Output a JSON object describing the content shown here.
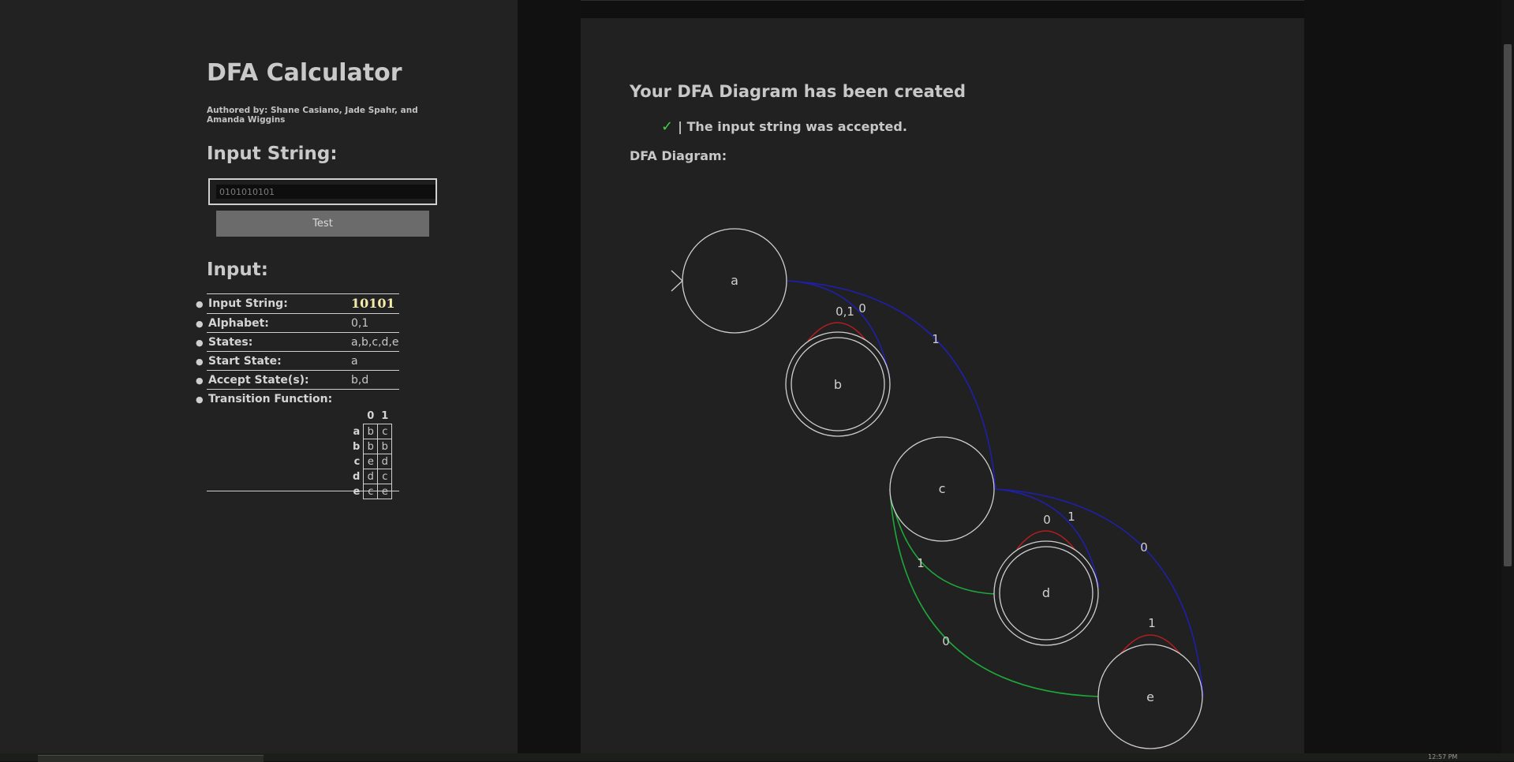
{
  "app": {
    "title": "DFA Calculator",
    "authors": "Authored by: Shane Casiano, Jade Spahr, and Amanda Wiggins"
  },
  "input_section": {
    "heading": "Input String:",
    "placeholder": "0101010101",
    "test_label": "Test"
  },
  "info_section": {
    "heading": "Input:",
    "rows": [
      {
        "label": "Input String:",
        "value": "10101"
      },
      {
        "label": "Alphabet:",
        "value": "0,1"
      },
      {
        "label": "States:",
        "value": "a,b,c,d,e"
      },
      {
        "label": "Start State:",
        "value": "a"
      },
      {
        "label": "Accept State(s):",
        "value": "b,d"
      },
      {
        "label": "Transition Function:",
        "value": ""
      }
    ],
    "transition_table": {
      "symbols": [
        "0",
        "1"
      ],
      "rows": [
        {
          "state": "a",
          "on": [
            "b",
            "c"
          ]
        },
        {
          "state": "b",
          "on": [
            "b",
            "b"
          ]
        },
        {
          "state": "c",
          "on": [
            "e",
            "d"
          ]
        },
        {
          "state": "d",
          "on": [
            "d",
            "c"
          ]
        },
        {
          "state": "e",
          "on": [
            "c",
            "e"
          ]
        }
      ]
    }
  },
  "result": {
    "heading": "Your DFA Diagram has been created",
    "check": "✓",
    "message": "| The input string was accepted.",
    "diagram_label": "DFA Diagram:"
  },
  "diagram": {
    "states": [
      {
        "id": "a",
        "accept": false,
        "start": true
      },
      {
        "id": "b",
        "accept": true,
        "start": false
      },
      {
        "id": "c",
        "accept": false,
        "start": false
      },
      {
        "id": "d",
        "accept": true,
        "start": false
      },
      {
        "id": "e",
        "accept": false,
        "start": false
      }
    ],
    "edge_labels": {
      "a_b": "0",
      "a_c": "1",
      "b_loop": "0,1",
      "c_d": "1",
      "c_e": "0",
      "d_loop": "0",
      "d_c": "1",
      "e_c": "0",
      "e_loop": "1"
    },
    "colors": {
      "forward_edge": "#1f1fa8",
      "back_edge": "#1fa83a",
      "self_loop": "#b01e1e"
    }
  },
  "taskbar": {
    "clock": "12:57 PM"
  }
}
